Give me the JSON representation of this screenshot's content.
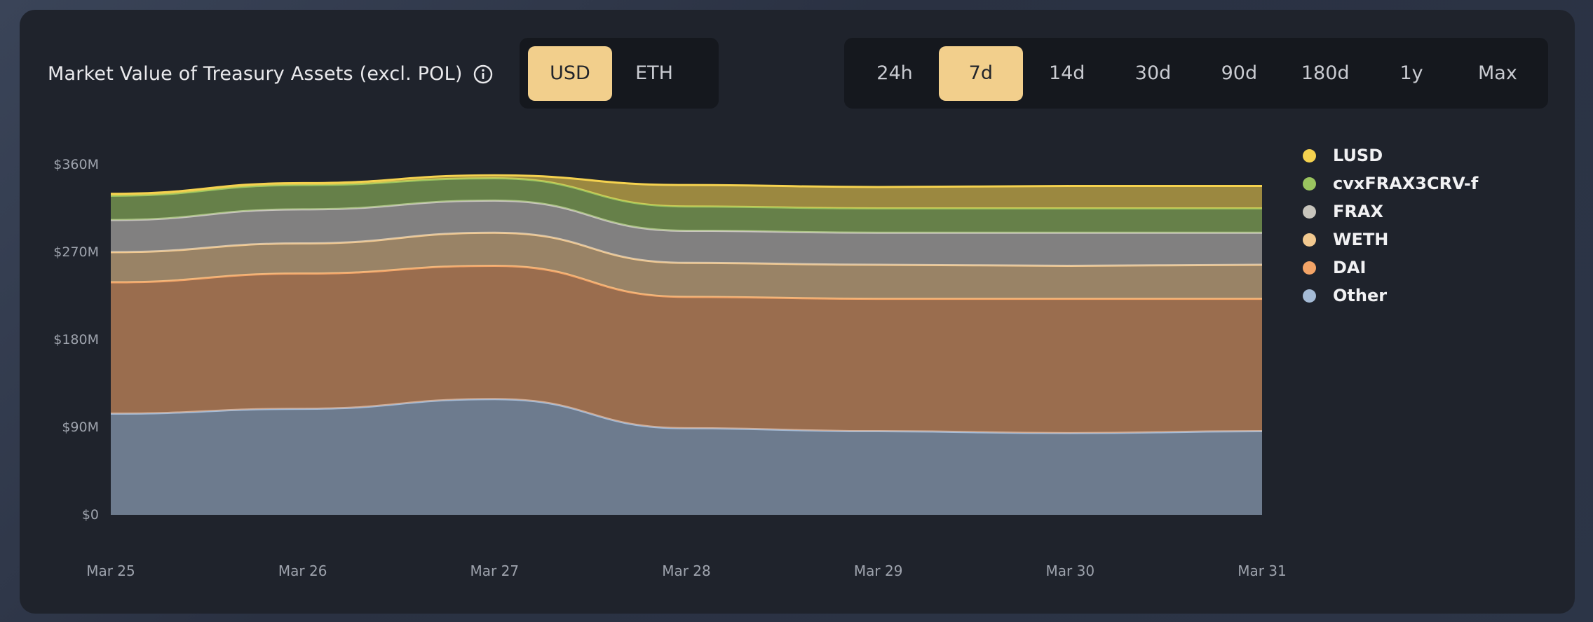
{
  "header": {
    "title": "Market Value of Treasury Assets (excl. POL)",
    "info_icon": "info-icon"
  },
  "currency_toggle": {
    "options": [
      "USD",
      "ETH"
    ],
    "selected": "USD"
  },
  "range_toggle": {
    "options": [
      "24h",
      "7d",
      "14d",
      "30d",
      "90d",
      "180d",
      "1y",
      "Max"
    ],
    "selected": "7d"
  },
  "chart_data": {
    "type": "area",
    "stacked": true,
    "title": "Market Value of Treasury Assets (excl. POL)",
    "x": [
      "Mar 25",
      "Mar 26",
      "Mar 27",
      "Mar 28",
      "Mar 29",
      "Mar 30",
      "Mar 31"
    ],
    "y_ticks": [
      "$0",
      "$90M",
      "$180M",
      "$270M",
      "$360M"
    ],
    "ylim": [
      0,
      360
    ],
    "y_unit": "M USD",
    "legend_position": "right",
    "series": [
      {
        "name": "Other",
        "color": "#a5bbd6",
        "values": [
          104,
          109,
          119,
          89,
          86,
          84,
          86
        ]
      },
      {
        "name": "DAI",
        "color": "#f3a467",
        "values": [
          135,
          139,
          137,
          135,
          136,
          138,
          136
        ]
      },
      {
        "name": "WETH",
        "color": "#f2c990",
        "values": [
          31,
          31,
          34,
          35,
          35,
          34,
          35
        ]
      },
      {
        "name": "FRAX",
        "color": "#c8c5bd",
        "values": [
          33,
          35,
          33,
          33,
          33,
          34,
          33
        ]
      },
      {
        "name": "cvxFRAX3CRV-f",
        "color": "#9ac45f",
        "values": [
          25,
          25,
          23,
          25,
          25,
          25,
          25
        ]
      },
      {
        "name": "LUSD",
        "color": "#f5d24f",
        "values": [
          2,
          2,
          3,
          22,
          22,
          23,
          23
        ]
      }
    ],
    "legend": [
      "LUSD",
      "cvxFRAX3CRV-f",
      "FRAX",
      "WETH",
      "DAI",
      "Other"
    ]
  }
}
